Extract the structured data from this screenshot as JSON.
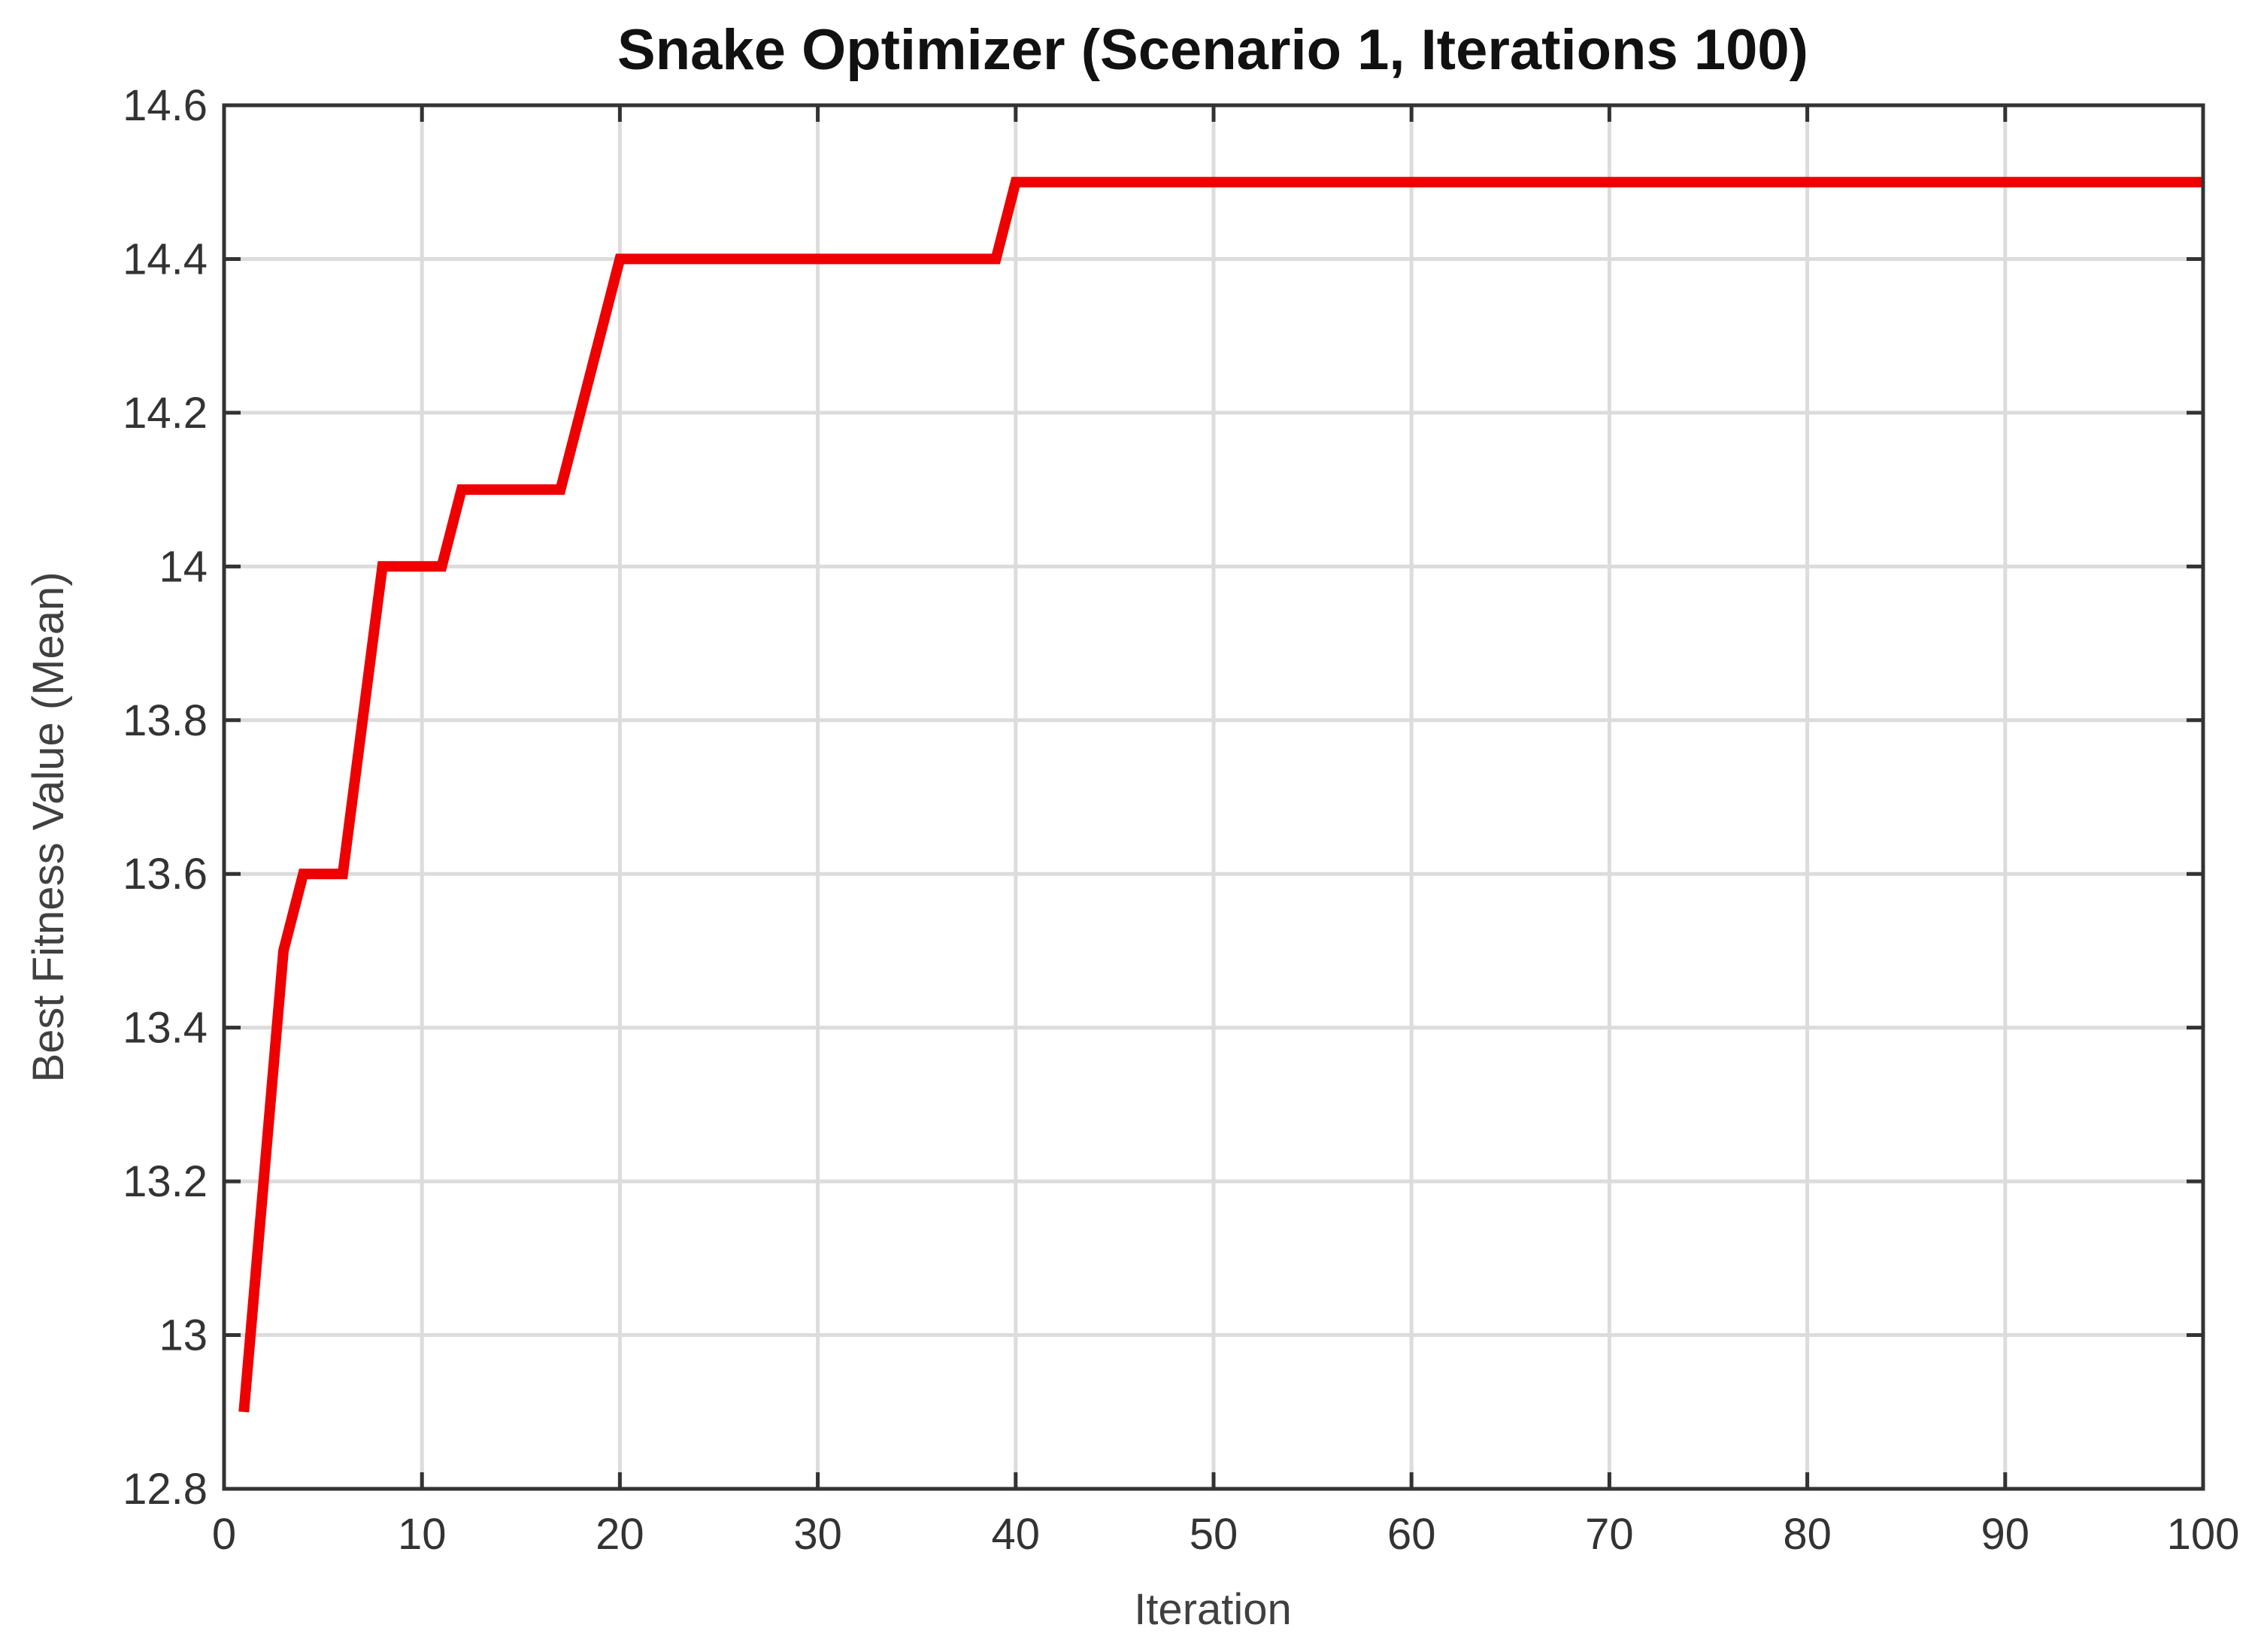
{
  "chart_data": {
    "type": "line",
    "title": "Snake Optimizer (Scenario 1, Iterations 100)",
    "xlabel": "Iteration",
    "ylabel": "Best Fitness Value (Mean)",
    "xlim": [
      0,
      100
    ],
    "ylim": [
      12.8,
      14.6
    ],
    "xticks": [
      0,
      10,
      20,
      30,
      40,
      50,
      60,
      70,
      80,
      90,
      100
    ],
    "yticks": [
      12.8,
      13,
      13.2,
      13.4,
      13.6,
      13.8,
      14,
      14.2,
      14.4,
      14.6
    ],
    "xtick_labels": [
      "0",
      "10",
      "20",
      "30",
      "40",
      "50",
      "60",
      "70",
      "80",
      "90",
      "100"
    ],
    "ytick_labels": [
      "12.8",
      "13",
      "13.2",
      "13.4",
      "13.6",
      "13.8",
      "14",
      "14.2",
      "14.4",
      "14.6"
    ],
    "grid": true,
    "series": [
      {
        "color": "#ee0000",
        "x": [
          1,
          3,
          4,
          6,
          8,
          11,
          12,
          17,
          20,
          39,
          40,
          100
        ],
        "y": [
          12.9,
          13.5,
          13.6,
          13.6,
          14.0,
          14.0,
          14.1,
          14.1,
          14.4,
          14.4,
          14.5,
          14.5
        ]
      }
    ]
  }
}
